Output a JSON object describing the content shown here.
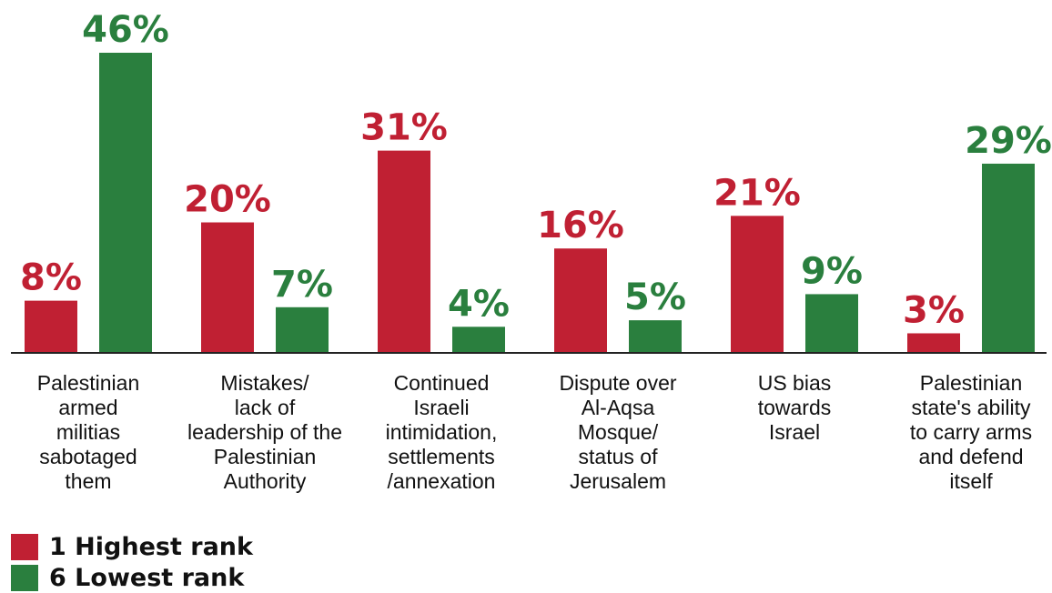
{
  "chart_data": {
    "type": "bar",
    "categories": [
      [
        "Palestinian",
        "armed",
        "militias",
        "sabotaged",
        "them"
      ],
      [
        "Mistakes/",
        "lack of",
        "leadership of the",
        "Palestinian",
        "Authority"
      ],
      [
        "Continued",
        "Israeli",
        "intimidation,",
        "settlements",
        "/annexation"
      ],
      [
        "Dispute over",
        "Al-Aqsa",
        "Mosque/",
        "status of",
        "Jerusalem"
      ],
      [
        "US bias",
        "towards",
        "Israel"
      ],
      [
        "Palestinian",
        "state's ability",
        "to carry arms",
        "and defend",
        "itself"
      ]
    ],
    "series": [
      {
        "name": "1 Highest rank",
        "color": "#c02033",
        "values": [
          8,
          20,
          31,
          16,
          21,
          3
        ],
        "labels": [
          "8%",
          "20%",
          "31%",
          "16%",
          "21%",
          "3%"
        ]
      },
      {
        "name": "6 Lowest rank",
        "color": "#2a7f3e",
        "values": [
          46,
          7,
          4,
          5,
          9,
          29
        ],
        "labels": [
          "46%",
          "7%",
          "4%",
          "5%",
          "9%",
          "29%"
        ]
      }
    ],
    "ylim": [
      0,
      46
    ],
    "grid": false,
    "legend_position": "bottom-left"
  }
}
